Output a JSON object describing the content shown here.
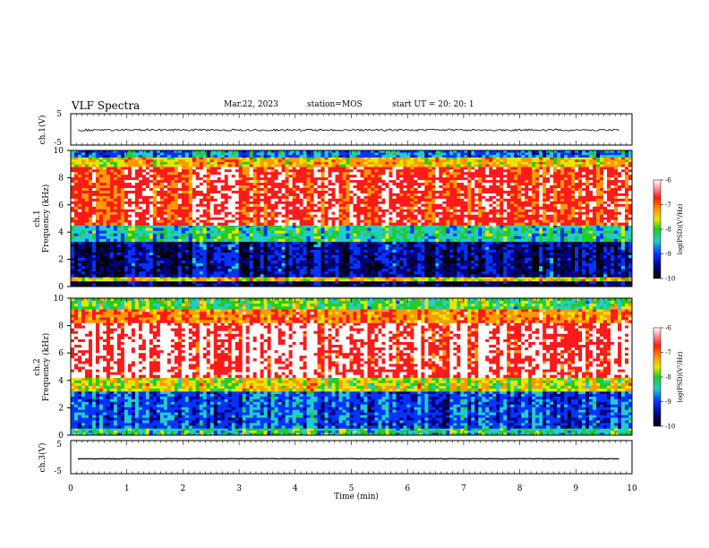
{
  "header": {
    "title": "VLF Spectra",
    "date": "Mar.22, 2023",
    "station": "station=MOS",
    "start": "start  UT  =   20: 20: 1"
  },
  "chart_data": [
    {
      "type": "line",
      "panel": "ch1-waveform",
      "ylabel": "ch.1(V)",
      "ylim": [
        -5,
        5
      ],
      "yticks": [
        "5",
        "-5"
      ],
      "xlim": [
        0,
        10
      ],
      "level": -0.2
    },
    {
      "type": "heatmap",
      "panel": "ch1-spectrogram",
      "ylabel": "ch.1\nFrequency (kHz)",
      "ylim": [
        0,
        10
      ],
      "yticks": [
        "0",
        "2",
        "4",
        "6",
        "8",
        "10"
      ],
      "xlim": [
        0,
        10
      ],
      "colorbar": {
        "label": "log(PSD)(V²/Hz)",
        "ticks": [
          "-6",
          "-7",
          "-8",
          "-9",
          "-10"
        ],
        "range": [
          -10,
          -6
        ]
      },
      "bands": [
        {
          "from_khz": 0,
          "to_khz": 0.4,
          "level": -9.6
        },
        {
          "from_khz": 0.4,
          "to_khz": 0.7,
          "level": -7.5
        },
        {
          "from_khz": 0.7,
          "to_khz": 3.3,
          "level": -9.4
        },
        {
          "from_khz": 3.3,
          "to_khz": 4.5,
          "level": -8.3
        },
        {
          "from_khz": 4.5,
          "to_khz": 8.8,
          "level": -6.6
        },
        {
          "from_khz": 8.8,
          "to_khz": 9.5,
          "level": -7.4
        },
        {
          "from_khz": 9.5,
          "to_khz": 10,
          "level": -8.7
        }
      ]
    },
    {
      "type": "heatmap",
      "panel": "ch2-spectrogram",
      "ylabel": "ch.2\nFrequency (kHz)",
      "ylim": [
        0,
        10
      ],
      "yticks": [
        "0",
        "2",
        "4",
        "6",
        "8",
        "10"
      ],
      "xlim": [
        0,
        10
      ],
      "colorbar": {
        "label": "log(PSD)(V²/Hz)",
        "ticks": [
          "-6",
          "-7",
          "-8",
          "-9",
          "-10"
        ],
        "range": [
          -10,
          -6
        ]
      },
      "bands": [
        {
          "from_khz": 0,
          "to_khz": 0.5,
          "level": -8.2
        },
        {
          "from_khz": 0.5,
          "to_khz": 3.2,
          "level": -8.9
        },
        {
          "from_khz": 3.2,
          "to_khz": 4.2,
          "level": -7.6
        },
        {
          "from_khz": 4.2,
          "to_khz": 8.2,
          "level": -6.3
        },
        {
          "from_khz": 8.2,
          "to_khz": 9.2,
          "level": -7.0
        },
        {
          "from_khz": 9.2,
          "to_khz": 10,
          "level": -8.0
        }
      ]
    },
    {
      "type": "line",
      "panel": "ch3-waveform",
      "ylabel": "ch.3(V)",
      "ylim": [
        -5,
        5
      ],
      "yticks": [
        "5",
        "-5"
      ],
      "xlim": [
        0,
        10
      ],
      "level": -0.5
    }
  ],
  "xaxis": {
    "label": "Time  (min)",
    "ticks": [
      "0",
      "1",
      "2",
      "3",
      "4",
      "5",
      "6",
      "7",
      "8",
      "9",
      "10"
    ]
  },
  "colors": {
    "white": "#ffffff",
    "red": "#ff1a1a",
    "orange": "#ff9900",
    "yellow": "#e6e600",
    "green": "#22cc22",
    "cyan": "#22cccc",
    "blue": "#0033ff",
    "navy": "#000080",
    "black": "#000000"
  }
}
